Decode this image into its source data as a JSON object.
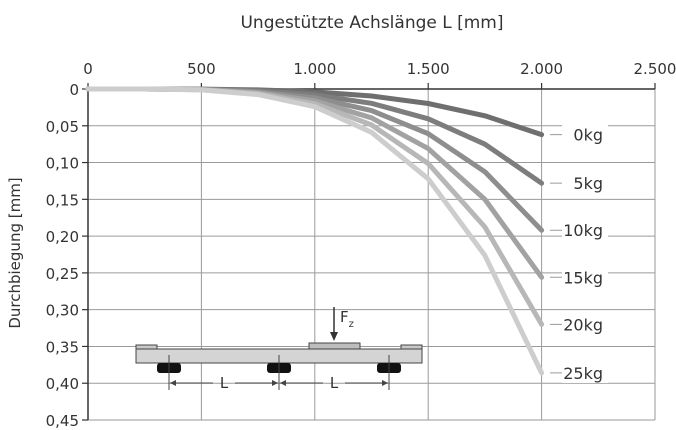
{
  "chart_data": {
    "type": "line",
    "title": "Ungestützte Achslänge L [mm]",
    "xlabel": "Ungestützte Achslänge L [mm]",
    "ylabel": "Durchbiegung [mm]",
    "x_axis_position": "top",
    "y_axis_inverted": true,
    "xlim": [
      0,
      2500
    ],
    "ylim": [
      0,
      0.45
    ],
    "grid": true,
    "x_ticks": [
      0,
      500,
      1000,
      1500,
      2000,
      2500
    ],
    "x_tick_labels": [
      "0",
      "500",
      "1.000",
      "1.500",
      "2.000",
      "2.500"
    ],
    "y_ticks": [
      0,
      0.05,
      0.1,
      0.15,
      0.2,
      0.25,
      0.3,
      0.35,
      0.4,
      0.45
    ],
    "y_tick_labels": [
      "0",
      "0,05",
      "0,10",
      "0,15",
      "0,20",
      "0,25",
      "0,30",
      "0,35",
      "0,40",
      "0,45"
    ],
    "x": [
      0,
      250,
      500,
      750,
      1000,
      1250,
      1500,
      1750,
      2000
    ],
    "series": [
      {
        "name": "0kg",
        "color": "#6f6f6f",
        "values": [
          0,
          0.0,
          0.0002,
          0.0012,
          0.0039,
          0.0095,
          0.0197,
          0.0365,
          0.062
        ]
      },
      {
        "name": "5kg",
        "color": "#7d7d7d",
        "values": [
          0,
          0.0,
          0.0004,
          0.0025,
          0.008,
          0.0195,
          0.0405,
          0.075,
          0.128
        ]
      },
      {
        "name": "10kg",
        "color": "#8e8e8e",
        "values": [
          0,
          0.0,
          0.0006,
          0.0038,
          0.012,
          0.0293,
          0.0608,
          0.1125,
          0.192
        ]
      },
      {
        "name": "15kg",
        "color": "#a2a2a2",
        "values": [
          0,
          0.0,
          0.0008,
          0.005,
          0.016,
          0.0391,
          0.081,
          0.1501,
          0.256
        ]
      },
      {
        "name": "20kg",
        "color": "#b7b7b7",
        "values": [
          0,
          0.0,
          0.001,
          0.0063,
          0.02,
          0.0488,
          0.1013,
          0.1876,
          0.32
        ]
      },
      {
        "name": "25kg",
        "color": "#cdcdcd",
        "values": [
          0,
          0.0,
          0.0012,
          0.0076,
          0.0241,
          0.0589,
          0.1221,
          0.2262,
          0.386
        ]
      }
    ]
  },
  "diagram": {
    "force_label": "F",
    "force_subscript": "z",
    "span_label_1": "L",
    "span_label_2": "L"
  }
}
